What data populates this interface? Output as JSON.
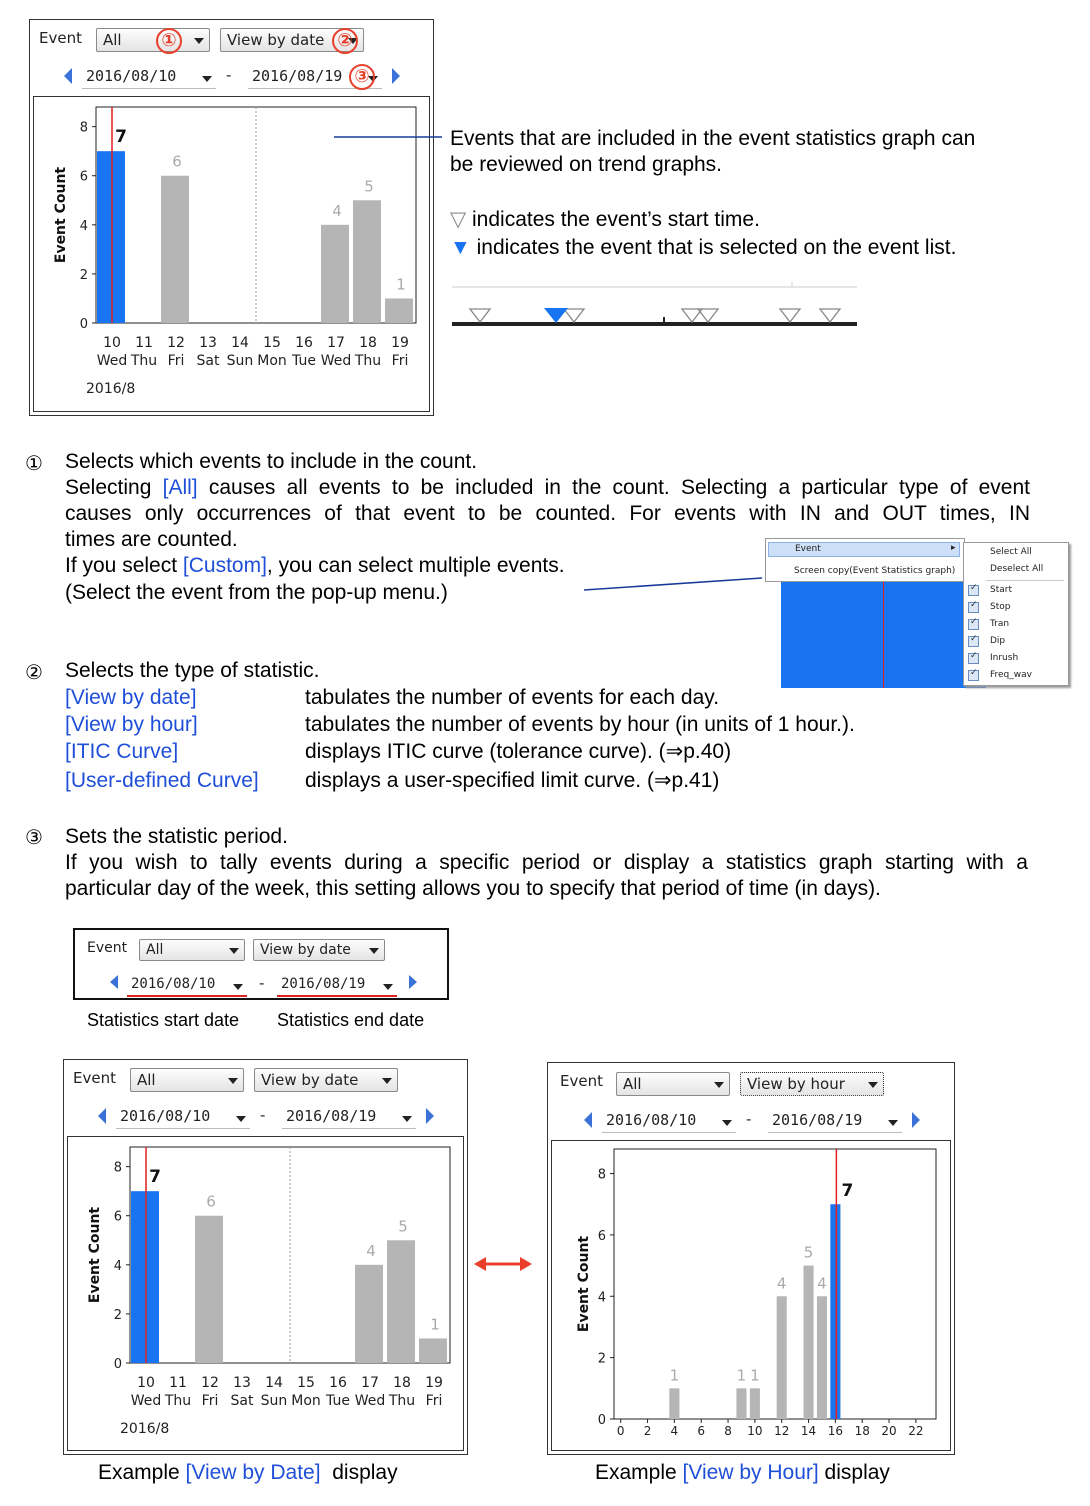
{
  "top_panel": {
    "event_label": "Event",
    "event_value": "All",
    "stat_value": "View by date",
    "start_date": "2016/08/10",
    "end_date": "2016/08/19",
    "markers": [
      "①",
      "②",
      "③"
    ],
    "chart": {
      "ylabel": "Event Count",
      "y_ticks": [
        "0",
        "2",
        "4",
        "6",
        "8"
      ],
      "day_nums": [
        "10",
        "11",
        "12",
        "13",
        "14",
        "15",
        "16",
        "17",
        "18",
        "19"
      ],
      "day_names": [
        "Wed",
        "Thu",
        "Fri",
        "Sat",
        "Sun",
        "Mon",
        "Tue",
        "Wed",
        "Thu",
        "Fri"
      ],
      "month": "2016/8",
      "bar_labels": [
        "7",
        "6",
        "4",
        "5",
        "1"
      ]
    }
  },
  "chart_data": [
    {
      "type": "bar",
      "categories": [
        "10",
        "11",
        "12",
        "13",
        "14",
        "15",
        "16",
        "17",
        "18",
        "19"
      ],
      "values": [
        7,
        0,
        6,
        0,
        0,
        0,
        0,
        4,
        5,
        1
      ],
      "selected": "10",
      "ylabel": "Event Count",
      "ylim": [
        0,
        8.8
      ],
      "month": "2016/8"
    },
    {
      "type": "bar",
      "x": [
        4,
        9,
        10,
        12,
        14,
        15,
        16
      ],
      "values": [
        1,
        1,
        1,
        4,
        5,
        4,
        7
      ],
      "selected": 16,
      "ylabel": "Event Count",
      "xlim": [
        -0.5,
        23.5
      ],
      "ylim": [
        0,
        8.8
      ],
      "x_ticks": [
        "0",
        "2",
        "4",
        "6",
        "8",
        "10",
        "12",
        "14",
        "16",
        "18",
        "20",
        "22"
      ]
    }
  ],
  "trend_text": {
    "line1": "Events that are included in the event statistics graph can",
    "line2": "be reviewed on trend graphs.",
    "hollow_symbol": "▽",
    "hollow_desc": "indicates the event’s start time.",
    "filled_symbol": "▼",
    "filled_desc": "indicates the event that is selected on the event list."
  },
  "section1": {
    "marker": "①",
    "heading": "Selects which events to include in the count.",
    "p1_a": "Selecting ",
    "p1_link": "[All]",
    "p1_b": " causes all events to be included in the count. Selecting a particular type of event",
    "p1_c": "causes only occurrences of that event to be counted. For events with IN and OUT times, IN",
    "p1_d": "times are counted.",
    "p2_a": "If you select ",
    "p2_link": "[Custom]",
    "p2_b": ", you can select multiple events.",
    "p3": "(Select the event from the pop-up menu.)"
  },
  "popup_menu": {
    "item1": "Event",
    "item2": "Screen copy(Event Statistics graph)",
    "select_all": "Select All",
    "deselect_all": "Deselect All",
    "events": [
      "Start",
      "Stop",
      "Tran",
      "Dip",
      "Inrush",
      "Freq_wav"
    ]
  },
  "section2": {
    "marker": "②",
    "heading": "Selects the type of statistic.",
    "rows": [
      {
        "term": "[View by date]",
        "desc": "tabulates the number of events for each day."
      },
      {
        "term": "[View by hour]",
        "desc": "tabulates the number of events by hour (in units of 1 hour.)."
      },
      {
        "term": "[ITIC Curve]",
        "desc": "displays ITIC curve (tolerance curve). (⇒p.40)"
      },
      {
        "term": "[User-defined Curve]",
        "desc": "displays a user-specified limit curve. (⇒p.41)"
      }
    ]
  },
  "section3": {
    "marker": "③",
    "heading": "Sets the statistic period.",
    "line1": "If you wish to tally events during a specific period or display a statistics graph starting with a",
    "line2": "particular day of the week, this setting allows you to specify that period of time (in days)."
  },
  "mini_panel": {
    "event_label": "Event",
    "event_value": "All",
    "stat_value": "View by date",
    "start_date": "2016/08/10",
    "end_date": "2016/08/19",
    "start_caption": "Statistics start date",
    "end_caption": "Statistics end date"
  },
  "example_date": {
    "event_label": "Event",
    "event_value": "All",
    "stat_value": "View by date",
    "start_date": "2016/08/10",
    "end_date": "2016/08/19",
    "caption_a": "Example ",
    "caption_link": "[View by Date]",
    "caption_b": "  display"
  },
  "example_hour": {
    "event_label": "Event",
    "event_value": "All",
    "stat_value": "View by hour",
    "start_date": "2016/08/10",
    "end_date": "2016/08/19",
    "caption_a": "Example ",
    "caption_link": "[View by Hour]",
    "caption_b": " display",
    "bar_labels": [
      "1",
      "1",
      "1",
      "4",
      "5",
      "4",
      "7"
    ]
  },
  "colors": {
    "selected_bar": "#1874f0",
    "bar": "#b5b5b5",
    "marker": "#e8402c",
    "link": "#1f4fd8",
    "nav": "#3a72d8"
  }
}
